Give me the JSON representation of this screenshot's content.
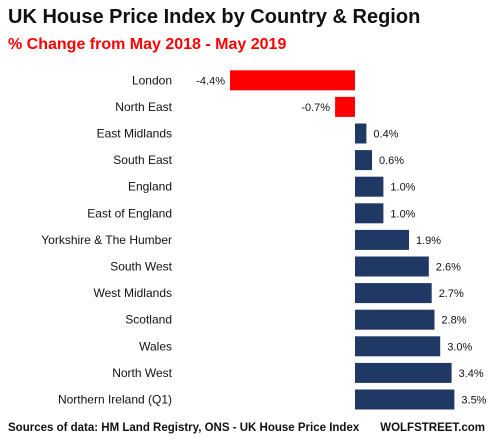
{
  "header": {
    "title": "UK House Price Index by Country  & Region",
    "subtitle": "% Change from May 2018 - May 2019"
  },
  "footer": {
    "source": "Sources of data: HM Land Registry, ONS - UK House Price Index",
    "brand": "WOLFSTREET.com"
  },
  "colors": {
    "negative": "#ff0000",
    "positive": "#1f3864"
  },
  "chart_data": {
    "type": "bar",
    "orientation": "horizontal",
    "title": "UK House Price Index by Country  & Region",
    "subtitle": "% Change from May 2018 - May 2019",
    "categories": [
      "London",
      "North East",
      "East Midlands",
      "South East",
      "England",
      "East of England",
      "Yorkshire & The Humber",
      "South West",
      "West Midlands",
      "Scotland",
      "Wales",
      "North West",
      "Northern Ireland (Q1)"
    ],
    "values": [
      -4.4,
      -0.7,
      0.4,
      0.6,
      1.0,
      1.0,
      1.9,
      2.6,
      2.7,
      2.8,
      3.0,
      3.4,
      3.5
    ],
    "data_labels": [
      "-4.4%",
      "-0.7%",
      "0.4%",
      "0.6%",
      "1.0%",
      "1.0%",
      "1.9%",
      "2.6%",
      "2.7%",
      "2.8%",
      "3.0%",
      "3.4%",
      "3.5%"
    ],
    "xlim": [
      -4.4,
      3.5
    ],
    "grid": false,
    "legend": "none"
  }
}
